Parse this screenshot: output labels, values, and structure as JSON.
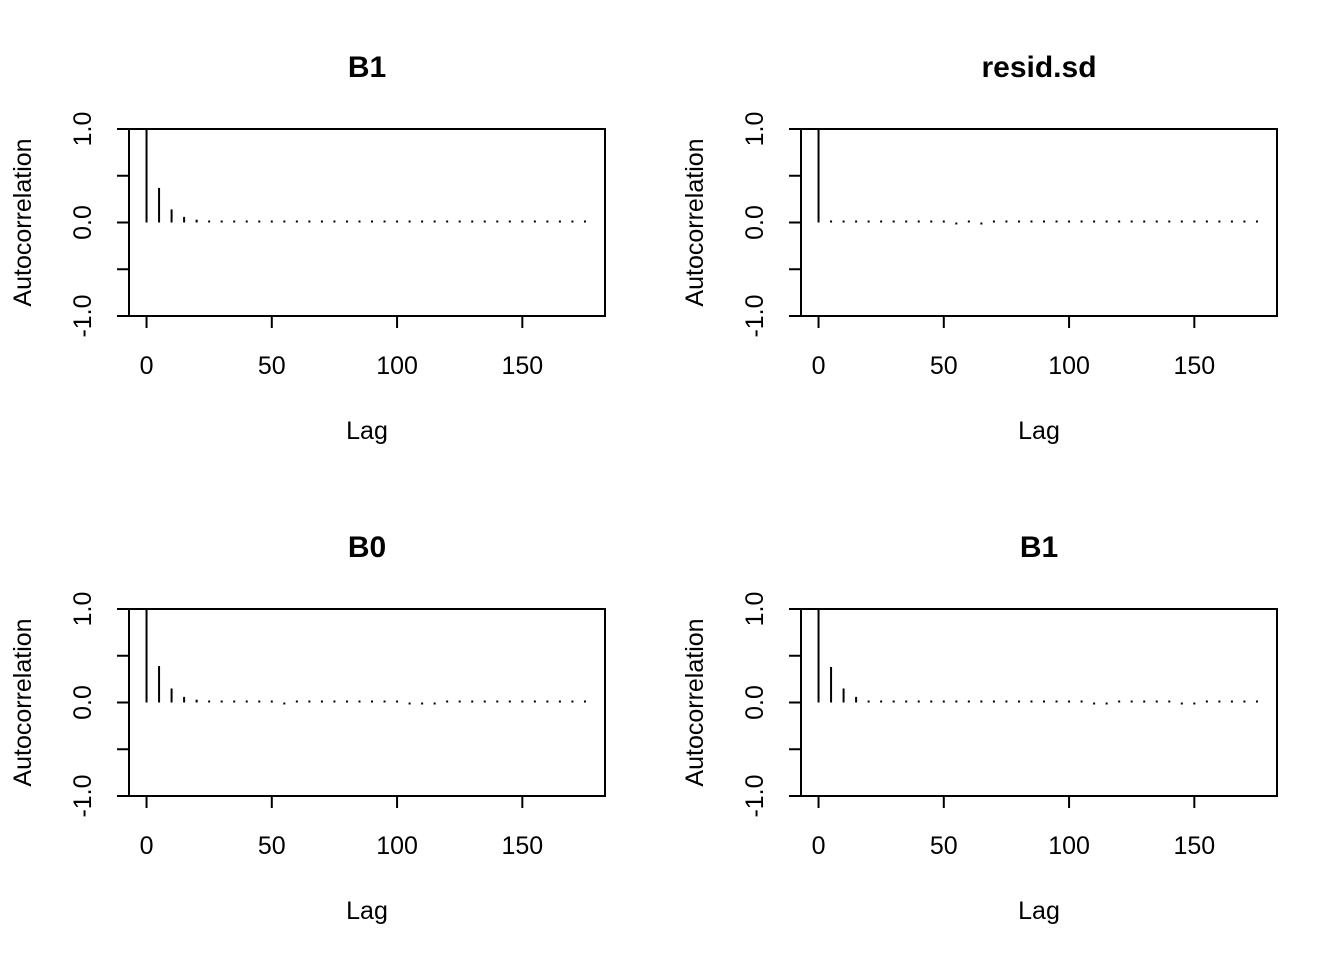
{
  "chart_data": [
    {
      "type": "bar",
      "title": "B1",
      "xlabel": "Lag",
      "ylabel": "Autocorrelation",
      "xlim": [
        -7,
        183
      ],
      "ylim": [
        -1,
        1
      ],
      "xticks": [
        0,
        50,
        100,
        150
      ],
      "xtick_labels": [
        "0",
        "50",
        "100",
        "150"
      ],
      "yticks": [
        -1,
        -0.5,
        0,
        0.5,
        1
      ],
      "ytick_labels": [
        "-1.0",
        "",
        "0.0",
        "",
        "1.0"
      ],
      "lags": [
        0,
        5,
        10,
        15,
        20,
        25,
        30,
        35,
        40,
        45,
        50,
        55,
        60,
        65,
        70,
        75,
        80,
        85,
        90,
        95,
        100,
        105,
        110,
        115,
        120,
        125,
        130,
        135,
        140,
        145,
        150,
        155,
        160,
        165,
        170,
        175
      ],
      "values": [
        1.0,
        0.37,
        0.14,
        0.06,
        0.03,
        0.02,
        0.01,
        0.0,
        0.01,
        0.0,
        0.01,
        0.0,
        0.02,
        0.02,
        0.02,
        0.02,
        0.01,
        0.0,
        0.01,
        0.0,
        0.01,
        0.01,
        0.0,
        0.01,
        0.0,
        0.0,
        0.0,
        0.0,
        0.0,
        0.0,
        0.01,
        0.01,
        0.01,
        0.01,
        0.01,
        0.01
      ],
      "grid": false,
      "legend": "none"
    },
    {
      "type": "bar",
      "title": "resid.sd",
      "xlabel": "Lag",
      "ylabel": "Autocorrelation",
      "xlim": [
        -7,
        183
      ],
      "ylim": [
        -1,
        1
      ],
      "xticks": [
        0,
        50,
        100,
        150
      ],
      "xtick_labels": [
        "0",
        "50",
        "100",
        "150"
      ],
      "yticks": [
        -1,
        -0.5,
        0,
        0.5,
        1
      ],
      "ytick_labels": [
        "-1.0",
        "",
        "0.0",
        "",
        "1.0"
      ],
      "lags": [
        0,
        5,
        10,
        15,
        20,
        25,
        30,
        35,
        40,
        45,
        50,
        55,
        60,
        65,
        70,
        75,
        80,
        85,
        90,
        95,
        100,
        105,
        110,
        115,
        120,
        125,
        130,
        135,
        140,
        145,
        150,
        155,
        160,
        165,
        170,
        175
      ],
      "values": [
        1.0,
        0.01,
        0.0,
        0.01,
        0.0,
        0.0,
        0.01,
        0.01,
        0.01,
        0.01,
        0.01,
        -0.01,
        0.0,
        -0.01,
        0.02,
        0.02,
        0.0,
        0.0,
        0.0,
        0.0,
        0.0,
        0.01,
        0.01,
        0.0,
        0.01,
        0.0,
        0.0,
        0.0,
        0.02,
        0.0,
        0.0,
        0.02,
        0.01,
        0.01,
        0.0,
        0.0
      ],
      "grid": false,
      "legend": "none"
    },
    {
      "type": "bar",
      "title": "B0",
      "xlabel": "Lag",
      "ylabel": "Autocorrelation",
      "xlim": [
        -7,
        183
      ],
      "ylim": [
        -1,
        1
      ],
      "xticks": [
        0,
        50,
        100,
        150
      ],
      "xtick_labels": [
        "0",
        "50",
        "100",
        "150"
      ],
      "yticks": [
        -1,
        -0.5,
        0,
        0.5,
        1
      ],
      "ytick_labels": [
        "-1.0",
        "",
        "0.0",
        "",
        "1.0"
      ],
      "lags": [
        0,
        5,
        10,
        15,
        20,
        25,
        30,
        35,
        40,
        45,
        50,
        55,
        60,
        65,
        70,
        75,
        80,
        85,
        90,
        95,
        100,
        105,
        110,
        115,
        120,
        125,
        130,
        135,
        140,
        145,
        150,
        155,
        160,
        165,
        170,
        175
      ],
      "values": [
        1.0,
        0.39,
        0.15,
        0.06,
        0.03,
        0.0,
        0.0,
        0.01,
        0.0,
        0.0,
        0.0,
        -0.01,
        0.0,
        0.0,
        0.01,
        0.02,
        0.02,
        0.02,
        0.01,
        0.0,
        0.0,
        -0.01,
        -0.02,
        -0.02,
        0.0,
        0.0,
        0.0,
        0.01,
        0.01,
        0.01,
        0.01,
        0.0,
        0.01,
        0.02,
        0.02,
        0.01
      ],
      "grid": false,
      "legend": "none"
    },
    {
      "type": "bar",
      "title": "B1",
      "xlabel": "Lag",
      "ylabel": "Autocorrelation",
      "xlim": [
        -7,
        183
      ],
      "ylim": [
        -1,
        1
      ],
      "xticks": [
        0,
        50,
        100,
        150
      ],
      "xtick_labels": [
        "0",
        "50",
        "100",
        "150"
      ],
      "yticks": [
        -1,
        -0.5,
        0,
        0.5,
        1
      ],
      "ytick_labels": [
        "-1.0",
        "",
        "0.0",
        "",
        "1.0"
      ],
      "lags": [
        0,
        5,
        10,
        15,
        20,
        25,
        30,
        35,
        40,
        45,
        50,
        55,
        60,
        65,
        70,
        75,
        80,
        85,
        90,
        95,
        100,
        105,
        110,
        115,
        120,
        125,
        130,
        135,
        140,
        145,
        150,
        155,
        160,
        165,
        170,
        175
      ],
      "values": [
        1.0,
        0.38,
        0.15,
        0.06,
        0.02,
        0.0,
        0.0,
        0.0,
        0.0,
        0.0,
        0.0,
        0.0,
        0.0,
        0.0,
        0.0,
        0.01,
        0.01,
        0.01,
        0.01,
        0.01,
        0.0,
        0.0,
        -0.01,
        -0.02,
        0.0,
        0.0,
        0.0,
        0.0,
        0.0,
        -0.01,
        -0.01,
        0.0,
        0.0,
        0.01,
        0.01,
        0.01
      ],
      "grid": false,
      "legend": "none"
    }
  ],
  "colors": {
    "ink": "#000000",
    "background": "#ffffff"
  }
}
